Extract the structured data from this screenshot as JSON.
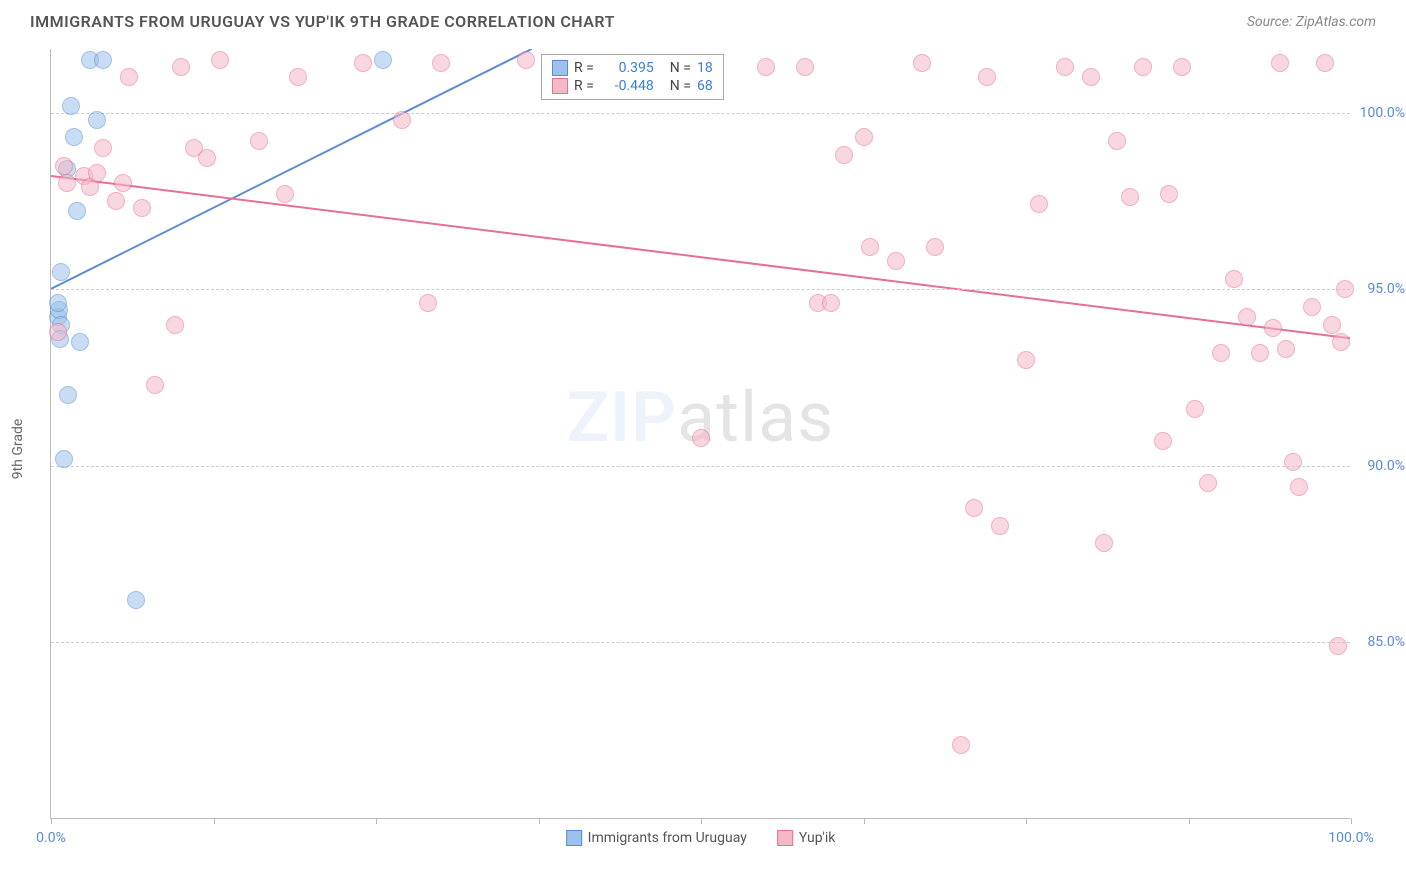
{
  "header": {
    "title": "IMMIGRANTS FROM URUGUAY VS YUP'IK 9TH GRADE CORRELATION CHART",
    "source_label": "Source: ZipAtlas.com"
  },
  "chart": {
    "type": "scatter",
    "ylabel": "9th Grade",
    "xlim": [
      0,
      100
    ],
    "ylim": [
      80,
      101.8
    ],
    "background_color": "#ffffff",
    "grid_color": "#cccccc",
    "axis_color": "#bbbbbb",
    "tick_label_color": "#5b8bd4",
    "tick_fontsize": 14,
    "ylabel_fontsize": 14,
    "xtick_positions": [
      0,
      12.5,
      25,
      37.5,
      50,
      62.5,
      75,
      87.5,
      100
    ],
    "xtick_labels": {
      "0": "0.0%",
      "100": "100.0%"
    },
    "ytick_positions": [
      85,
      90,
      95,
      100
    ],
    "ytick_labels": {
      "85": "85.0%",
      "90": "90.0%",
      "95": "95.0%",
      "100": "100.0%"
    },
    "marker_radius": 9,
    "marker_opacity": 0.55,
    "marker_stroke_width": 1.2,
    "trend_line_width": 2,
    "watermark_text_a": "ZIP",
    "watermark_text_b": "atlas",
    "series": [
      {
        "name": "Immigrants from Uruguay",
        "color_fill": "#9cc1ea",
        "color_stroke": "#5b8bd4",
        "legend_R_label": "R =",
        "legend_R_value": "0.395",
        "legend_N_label": "N =",
        "legend_N_value": "18",
        "trend": {
          "x1": 0,
          "y1": 95.0,
          "x2": 37,
          "y2": 101.8
        },
        "points": [
          [
            0.5,
            94.2
          ],
          [
            0.6,
            94.4
          ],
          [
            0.8,
            94.0
          ],
          [
            0.5,
            94.6
          ],
          [
            0.7,
            93.6
          ],
          [
            0.8,
            95.5
          ],
          [
            1.2,
            98.4
          ],
          [
            1.5,
            100.2
          ],
          [
            1.8,
            99.3
          ],
          [
            2.0,
            97.2
          ],
          [
            3.0,
            101.5
          ],
          [
            3.5,
            99.8
          ],
          [
            4.0,
            101.5
          ],
          [
            6.5,
            86.2
          ],
          [
            1.0,
            90.2
          ],
          [
            1.3,
            92.0
          ],
          [
            2.2,
            93.5
          ],
          [
            25.5,
            101.5
          ]
        ]
      },
      {
        "name": "Yup'ik",
        "color_fill": "#f5b8c8",
        "color_stroke": "#e76f94",
        "legend_R_label": "R =",
        "legend_R_value": "-0.448",
        "legend_N_label": "N =",
        "legend_N_value": "68",
        "trend": {
          "x1": 0,
          "y1": 98.2,
          "x2": 100,
          "y2": 93.6
        },
        "points": [
          [
            0.5,
            93.8
          ],
          [
            1.0,
            98.5
          ],
          [
            1.2,
            98.0
          ],
          [
            2.5,
            98.2
          ],
          [
            3.0,
            97.9
          ],
          [
            3.5,
            98.3
          ],
          [
            4.0,
            99.0
          ],
          [
            5.0,
            97.5
          ],
          [
            5.5,
            98.0
          ],
          [
            6.0,
            101.0
          ],
          [
            7.0,
            97.3
          ],
          [
            8.0,
            92.3
          ],
          [
            9.5,
            94.0
          ],
          [
            10.0,
            101.3
          ],
          [
            11.0,
            99.0
          ],
          [
            12.0,
            98.7
          ],
          [
            13.0,
            101.5
          ],
          [
            16.0,
            99.2
          ],
          [
            18.0,
            97.7
          ],
          [
            19.0,
            101.0
          ],
          [
            24.0,
            101.4
          ],
          [
            27.0,
            99.8
          ],
          [
            29.0,
            94.6
          ],
          [
            30.0,
            101.4
          ],
          [
            36.5,
            101.5
          ],
          [
            50.0,
            90.8
          ],
          [
            55.0,
            101.3
          ],
          [
            58.0,
            101.3
          ],
          [
            59.0,
            94.6
          ],
          [
            60.0,
            94.6
          ],
          [
            61.0,
            98.8
          ],
          [
            62.5,
            99.3
          ],
          [
            63.0,
            96.2
          ],
          [
            65.0,
            95.8
          ],
          [
            67.0,
            101.4
          ],
          [
            68.0,
            96.2
          ],
          [
            70.0,
            82.1
          ],
          [
            71.0,
            88.8
          ],
          [
            72.0,
            101.0
          ],
          [
            73.0,
            88.3
          ],
          [
            75.0,
            93.0
          ],
          [
            76.0,
            97.4
          ],
          [
            78.0,
            101.3
          ],
          [
            80.0,
            101.0
          ],
          [
            81.0,
            87.8
          ],
          [
            82.0,
            99.2
          ],
          [
            83.0,
            97.6
          ],
          [
            84.0,
            101.3
          ],
          [
            85.5,
            90.7
          ],
          [
            87.0,
            101.3
          ],
          [
            88.0,
            91.6
          ],
          [
            89.0,
            89.5
          ],
          [
            90.0,
            93.2
          ],
          [
            91.0,
            95.3
          ],
          [
            92.0,
            94.2
          ],
          [
            93.0,
            93.2
          ],
          [
            94.0,
            93.9
          ],
          [
            94.5,
            101.4
          ],
          [
            95.0,
            93.3
          ],
          [
            95.5,
            90.1
          ],
          [
            96.0,
            89.4
          ],
          [
            97.0,
            94.5
          ],
          [
            98.0,
            101.4
          ],
          [
            98.5,
            94.0
          ],
          [
            99.0,
            84.9
          ],
          [
            99.2,
            93.5
          ],
          [
            99.5,
            95.0
          ],
          [
            86.0,
            97.7
          ]
        ]
      }
    ]
  }
}
